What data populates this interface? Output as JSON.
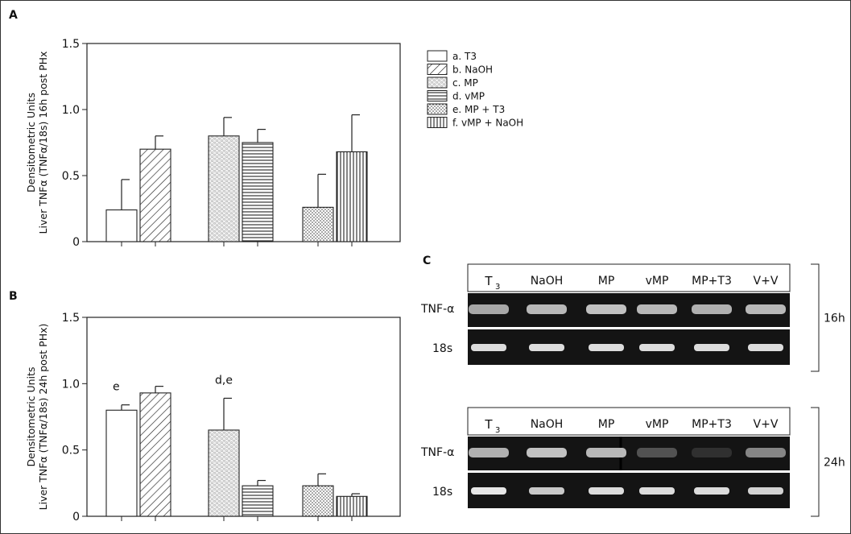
{
  "panels": {
    "A": "A",
    "B": "B",
    "C": "C"
  },
  "legend": [
    {
      "label": "a. T3",
      "pattern": "pat-empty"
    },
    {
      "label": "b. NaOH",
      "pattern": "pat-diag"
    },
    {
      "label": "c. MP",
      "pattern": "pat-hex"
    },
    {
      "label": "d. vMP",
      "pattern": "pat-hlines"
    },
    {
      "label": "e. MP + T3",
      "pattern": "pat-dots"
    },
    {
      "label": "f. vMP + NaOH",
      "pattern": "pat-vlines"
    }
  ],
  "chart_data": [
    {
      "type": "bar",
      "panel": "A",
      "ylabel_line1": "Densitometric Units",
      "ylabel_line2": "Liver TNFα (TNFα/18s) 16h post PHx",
      "ylim": [
        0,
        1.5
      ],
      "yticks": [
        "0",
        "0.5",
        "1.0",
        "1.5"
      ],
      "ytick_values": [
        0,
        0.5,
        1.0,
        1.5
      ],
      "series": [
        {
          "name": "a. T3",
          "value": 0.24,
          "error": 0.23
        },
        {
          "name": "b. NaOH",
          "value": 0.7,
          "error": 0.1
        },
        {
          "name": "c. MP",
          "value": 0.8,
          "error": 0.14
        },
        {
          "name": "d. vMP",
          "value": 0.75,
          "error": 0.1
        },
        {
          "name": "e. MP + T3",
          "value": 0.26,
          "error": 0.25
        },
        {
          "name": "f. vMP + NaOH",
          "value": 0.68,
          "error": 0.28
        }
      ],
      "annotations": []
    },
    {
      "type": "bar",
      "panel": "B",
      "ylabel_line1": "Densitometric Units",
      "ylabel_line2": "Liver TNFα (TNFα/18s) 24h post PHx)",
      "ylim": [
        0,
        1.5
      ],
      "yticks": [
        "0",
        "0.5",
        "1.0",
        "1.5"
      ],
      "ytick_values": [
        0,
        0.5,
        1.0,
        1.5
      ],
      "series": [
        {
          "name": "a. T3",
          "value": 0.8,
          "error": 0.04
        },
        {
          "name": "b. NaOH",
          "value": 0.93,
          "error": 0.05
        },
        {
          "name": "c. MP",
          "value": 0.65,
          "error": 0.24
        },
        {
          "name": "d. vMP",
          "value": 0.23,
          "error": 0.04
        },
        {
          "name": "e. MP + T3",
          "value": 0.23,
          "error": 0.09
        },
        {
          "name": "f. vMP + NaOH",
          "value": 0.15,
          "error": 0.02
        }
      ],
      "annotations": [
        {
          "text": "e",
          "bar": 0
        },
        {
          "text": "d,e",
          "bar": 2
        }
      ]
    }
  ],
  "gel": {
    "lanes": [
      "T3",
      "NaOH",
      "MP",
      "vMP",
      "MP+T3",
      "V+V"
    ],
    "lane_main_first": "T",
    "lane_sub_first": "3",
    "row_labels": [
      "TNF-α",
      "18s"
    ],
    "blots": [
      {
        "time": "16h",
        "tnf_intensity": [
          0.75,
          0.85,
          0.9,
          0.85,
          0.8,
          0.85
        ],
        "s18_intensity": [
          0.9,
          0.9,
          0.9,
          0.9,
          0.9,
          0.9
        ]
      },
      {
        "time": "24h",
        "tnf_intensity": [
          0.8,
          0.9,
          0.85,
          0.25,
          0.05,
          0.55
        ],
        "s18_intensity": [
          0.95,
          0.8,
          0.9,
          0.9,
          0.9,
          0.85
        ]
      }
    ]
  }
}
